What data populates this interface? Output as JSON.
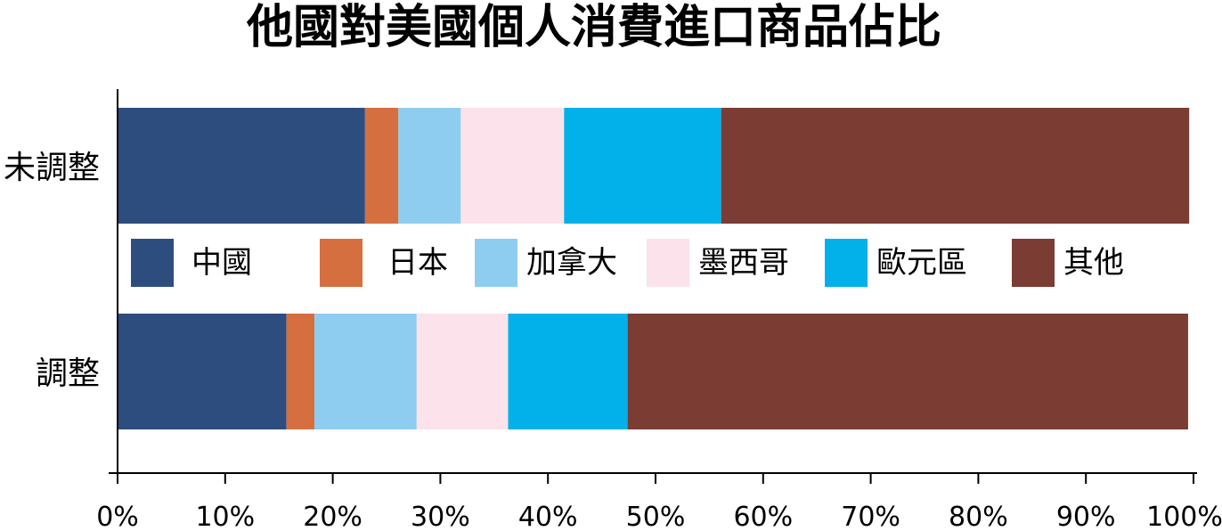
{
  "chart_data": {
    "type": "bar",
    "orientation": "horizontal",
    "stacked": true,
    "title": "他國對美國個人消費進口商品佔比",
    "categories": [
      "未調整",
      "調整"
    ],
    "series": [
      {
        "name": "中國",
        "color": "#2e4d7f",
        "values": [
          23.0,
          15.7
        ]
      },
      {
        "name": "日本",
        "color": "#d66f3f",
        "values": [
          3.1,
          2.6
        ]
      },
      {
        "name": "加拿大",
        "color": "#8fcdf0",
        "values": [
          5.8,
          9.5
        ]
      },
      {
        "name": "墨西哥",
        "color": "#fce2ea",
        "values": [
          9.6,
          8.5
        ]
      },
      {
        "name": "歐元區",
        "color": "#02b1ea",
        "values": [
          14.6,
          11.1
        ]
      },
      {
        "name": "其他",
        "color": "#7b3c34",
        "values": [
          43.5,
          52.1
        ]
      }
    ],
    "xlim": [
      0,
      100
    ],
    "xticks": [
      "0%",
      "10%",
      "20%",
      "30%",
      "40%",
      "50%",
      "60%",
      "70%",
      "80%",
      "90%",
      "100%"
    ],
    "grid": false,
    "legend": "center, between bars"
  }
}
